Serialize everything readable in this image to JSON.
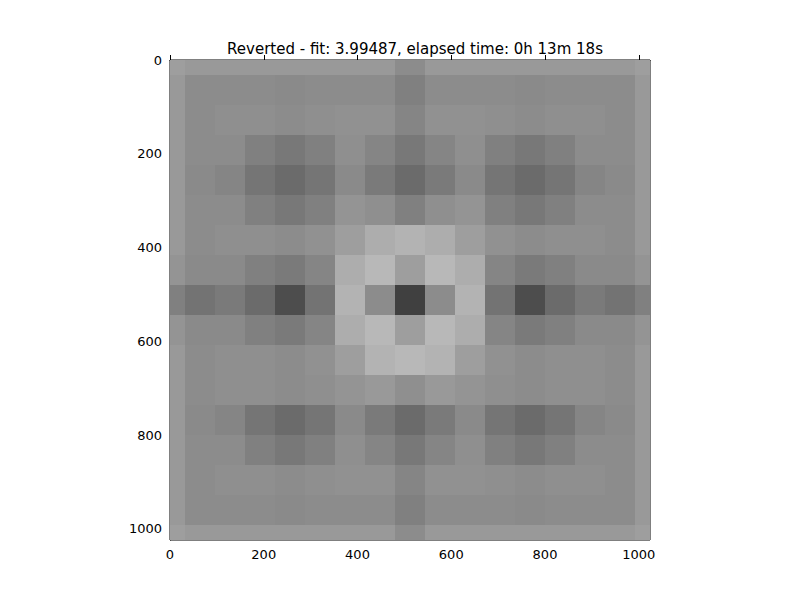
{
  "chart_data": {
    "type": "heatmap",
    "title": "Reverted - fit: 3.99487, elapsed time: 0h 13m 18s",
    "color": "gray",
    "color_range": [
      0,
      1
    ],
    "grid": false,
    "xlim": [
      0,
      1024
    ],
    "ylim": [
      1024,
      0
    ],
    "xticks": [
      0,
      200,
      400,
      600,
      800,
      1000
    ],
    "yticks": [
      0,
      200,
      400,
      600,
      800,
      1000
    ],
    "x_edges": [
      0,
      32,
      96,
      160,
      224,
      288,
      352,
      416,
      480,
      544,
      608,
      672,
      736,
      800,
      864,
      928,
      992,
      1024
    ],
    "y_edges": [
      0,
      32,
      96,
      160,
      224,
      288,
      352,
      416,
      480,
      544,
      608,
      672,
      736,
      800,
      864,
      928,
      992,
      1024
    ],
    "values": [
      [
        0.62,
        0.6,
        0.6,
        0.6,
        0.6,
        0.6,
        0.6,
        0.6,
        0.55,
        0.6,
        0.6,
        0.6,
        0.6,
        0.6,
        0.6,
        0.6,
        0.62
      ],
      [
        0.6,
        0.55,
        0.55,
        0.55,
        0.54,
        0.55,
        0.55,
        0.55,
        0.5,
        0.55,
        0.55,
        0.55,
        0.54,
        0.55,
        0.55,
        0.55,
        0.6
      ],
      [
        0.6,
        0.55,
        0.56,
        0.56,
        0.55,
        0.56,
        0.57,
        0.57,
        0.52,
        0.57,
        0.57,
        0.56,
        0.55,
        0.56,
        0.56,
        0.55,
        0.6
      ],
      [
        0.6,
        0.55,
        0.55,
        0.5,
        0.47,
        0.5,
        0.56,
        0.52,
        0.47,
        0.52,
        0.56,
        0.5,
        0.47,
        0.5,
        0.55,
        0.55,
        0.6
      ],
      [
        0.6,
        0.54,
        0.52,
        0.46,
        0.42,
        0.46,
        0.54,
        0.48,
        0.42,
        0.48,
        0.54,
        0.46,
        0.42,
        0.46,
        0.52,
        0.54,
        0.6
      ],
      [
        0.6,
        0.55,
        0.55,
        0.5,
        0.47,
        0.5,
        0.58,
        0.56,
        0.5,
        0.56,
        0.58,
        0.5,
        0.47,
        0.5,
        0.55,
        0.55,
        0.6
      ],
      [
        0.6,
        0.55,
        0.56,
        0.56,
        0.55,
        0.57,
        0.62,
        0.68,
        0.7,
        0.68,
        0.62,
        0.57,
        0.55,
        0.56,
        0.56,
        0.55,
        0.6
      ],
      [
        0.58,
        0.54,
        0.54,
        0.5,
        0.48,
        0.52,
        0.68,
        0.72,
        0.62,
        0.72,
        0.68,
        0.52,
        0.48,
        0.5,
        0.54,
        0.54,
        0.58
      ],
      [
        0.5,
        0.45,
        0.48,
        0.42,
        0.3,
        0.45,
        0.7,
        0.55,
        0.25,
        0.55,
        0.7,
        0.45,
        0.3,
        0.42,
        0.48,
        0.45,
        0.5
      ],
      [
        0.58,
        0.54,
        0.54,
        0.5,
        0.48,
        0.52,
        0.68,
        0.72,
        0.62,
        0.72,
        0.68,
        0.52,
        0.48,
        0.5,
        0.54,
        0.54,
        0.58
      ],
      [
        0.6,
        0.55,
        0.56,
        0.56,
        0.55,
        0.57,
        0.62,
        0.7,
        0.72,
        0.7,
        0.62,
        0.57,
        0.55,
        0.56,
        0.56,
        0.55,
        0.6
      ],
      [
        0.6,
        0.55,
        0.56,
        0.56,
        0.55,
        0.56,
        0.58,
        0.6,
        0.56,
        0.6,
        0.58,
        0.56,
        0.55,
        0.56,
        0.56,
        0.55,
        0.6
      ],
      [
        0.6,
        0.54,
        0.52,
        0.46,
        0.42,
        0.46,
        0.54,
        0.48,
        0.42,
        0.48,
        0.54,
        0.46,
        0.42,
        0.46,
        0.52,
        0.54,
        0.6
      ],
      [
        0.6,
        0.55,
        0.55,
        0.5,
        0.47,
        0.5,
        0.56,
        0.52,
        0.47,
        0.52,
        0.56,
        0.5,
        0.47,
        0.5,
        0.55,
        0.55,
        0.6
      ],
      [
        0.6,
        0.55,
        0.56,
        0.56,
        0.55,
        0.56,
        0.57,
        0.57,
        0.52,
        0.57,
        0.57,
        0.56,
        0.55,
        0.56,
        0.56,
        0.55,
        0.6
      ],
      [
        0.6,
        0.55,
        0.55,
        0.55,
        0.54,
        0.55,
        0.55,
        0.55,
        0.5,
        0.55,
        0.55,
        0.55,
        0.54,
        0.55,
        0.55,
        0.55,
        0.6
      ],
      [
        0.62,
        0.6,
        0.6,
        0.6,
        0.6,
        0.6,
        0.6,
        0.6,
        0.55,
        0.6,
        0.6,
        0.6,
        0.6,
        0.6,
        0.6,
        0.6,
        0.62
      ]
    ]
  }
}
